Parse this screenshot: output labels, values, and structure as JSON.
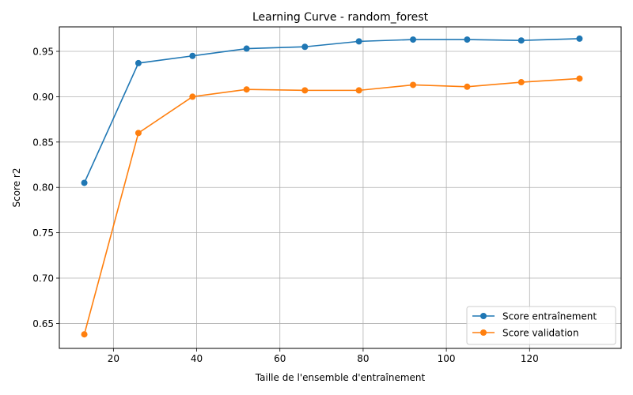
{
  "chart_data": {
    "type": "line",
    "title": "Learning Curve - random_forest",
    "xlabel": "Taille de l'ensemble d'entraînement",
    "ylabel": "Score r2",
    "xlim": [
      7,
      142
    ],
    "ylim": [
      0.6225,
      0.977
    ],
    "xticks": [
      20,
      40,
      60,
      80,
      100,
      120
    ],
    "xtick_labels": [
      "20",
      "40",
      "60",
      "80",
      "100",
      "120"
    ],
    "yticks": [
      0.65,
      0.7,
      0.75,
      0.8,
      0.85,
      0.9,
      0.95
    ],
    "ytick_labels": [
      "0.65",
      "0.70",
      "0.75",
      "0.80",
      "0.85",
      "0.90",
      "0.95"
    ],
    "grid": true,
    "legend_position": "lower-right",
    "x": [
      13,
      26,
      39,
      52,
      66,
      79,
      92,
      105,
      118,
      132
    ],
    "series": [
      {
        "name": "Score entraînement",
        "color": "#1f77b4",
        "values": [
          0.805,
          0.937,
          0.945,
          0.953,
          0.955,
          0.961,
          0.963,
          0.963,
          0.962,
          0.964
        ]
      },
      {
        "name": "Score validation",
        "color": "#ff7f0e",
        "values": [
          0.638,
          0.86,
          0.9,
          0.908,
          0.907,
          0.907,
          0.913,
          0.911,
          0.916,
          0.92
        ]
      }
    ]
  }
}
